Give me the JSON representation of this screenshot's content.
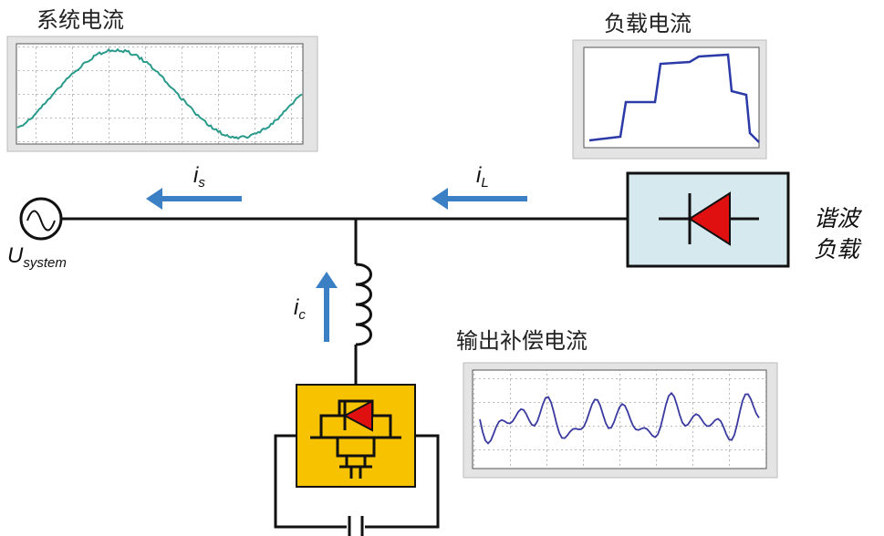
{
  "titles": {
    "system_current": "系统电流",
    "load_current": "负载电流",
    "output_current": "输出补偿电流"
  },
  "labels": {
    "is": {
      "main": "i",
      "sub": "s"
    },
    "il": {
      "main": "i",
      "sub": "L"
    },
    "ic": {
      "main": "i",
      "sub": "c"
    },
    "usys": {
      "main": "U",
      "sub": "system"
    }
  },
  "load": {
    "line1": "谐波",
    "line2": "负载"
  }
}
